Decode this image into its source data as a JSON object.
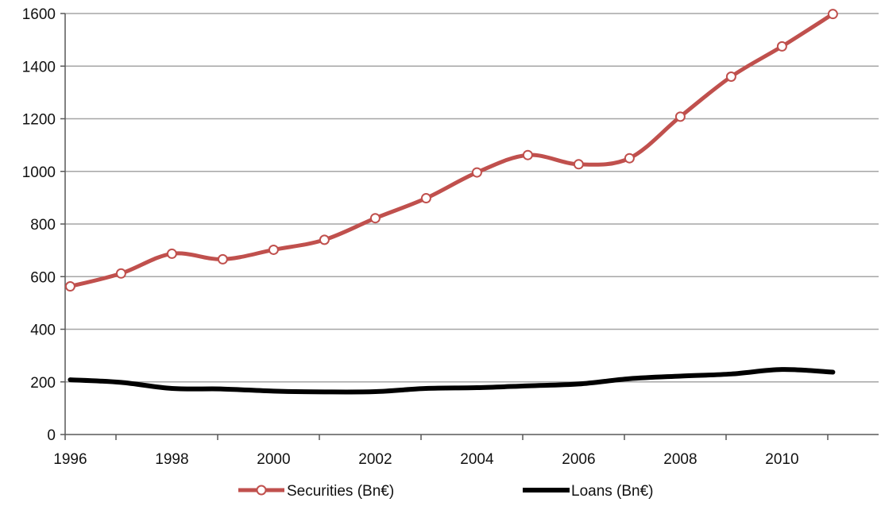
{
  "chart_data": {
    "type": "line",
    "title": "",
    "xlabel": "",
    "ylabel": "",
    "x": [
      1996,
      1997,
      1998,
      1999,
      2000,
      2001,
      2002,
      2003,
      2004,
      2005,
      2006,
      2007,
      2008,
      2009,
      2010,
      2011
    ],
    "xticks": [
      "1996",
      "1998",
      "2000",
      "2002",
      "2004",
      "2006",
      "2008",
      "2010"
    ],
    "xlim": [
      1995.9,
      2011.9
    ],
    "ylim": [
      0,
      1600
    ],
    "yticks": [
      "0",
      "200",
      "400",
      "600",
      "800",
      "1000",
      "1200",
      "1400",
      "1600"
    ],
    "grid": "horizontal",
    "legend_position": "bottom",
    "series": [
      {
        "name": "Securities (Bn€)",
        "color": "#c0504d",
        "marker": "open-circle",
        "values": [
          563,
          612,
          687,
          666,
          702,
          740,
          822,
          898,
          996,
          1062,
          1027,
          1050,
          1208,
          1360,
          1475,
          1598
        ]
      },
      {
        "name": "Loans (Bn€)",
        "color": "#000000",
        "marker": "none",
        "values": [
          208,
          198,
          175,
          173,
          165,
          162,
          163,
          175,
          178,
          185,
          192,
          212,
          222,
          230,
          247,
          237
        ]
      }
    ]
  }
}
